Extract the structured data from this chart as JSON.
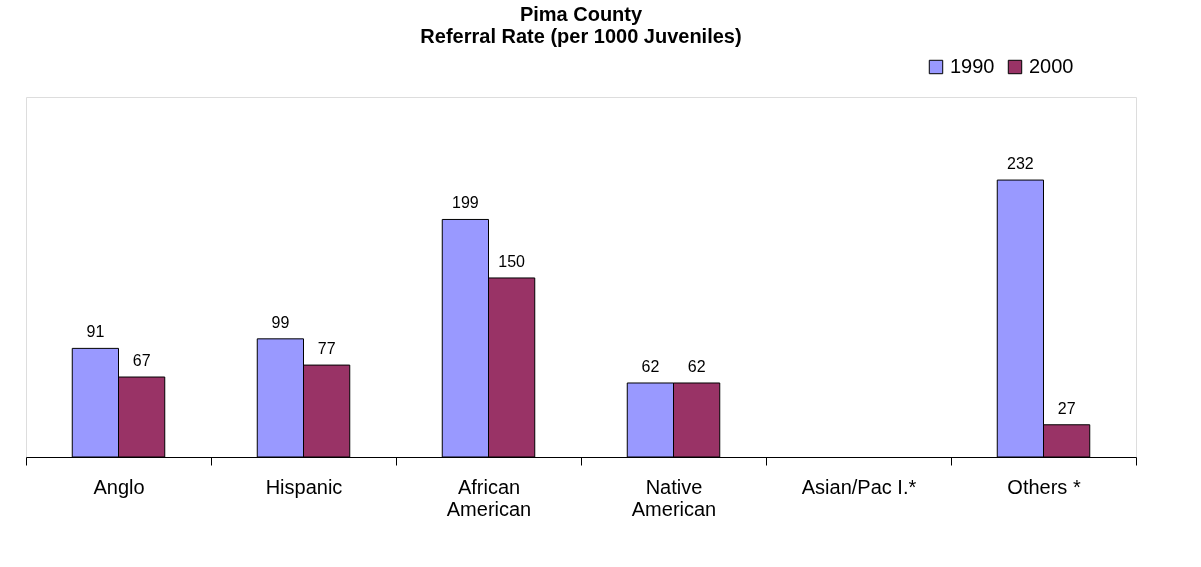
{
  "chart_data": {
    "type": "bar",
    "title": [
      "Pima County",
      "Referral Rate (per 1000 Juveniles)"
    ],
    "categories": [
      "Anglo",
      "Hispanic",
      "African American",
      "Native American",
      "Asian/Pac I.*",
      "Others *"
    ],
    "series": [
      {
        "name": "1990",
        "color": "#9999ff",
        "values": [
          91,
          99,
          199,
          62,
          null,
          232
        ]
      },
      {
        "name": "2000",
        "color": "#993366",
        "values": [
          67,
          77,
          150,
          62,
          null,
          27
        ]
      }
    ],
    "data_labels": true,
    "legend": "top right",
    "grid": false
  }
}
